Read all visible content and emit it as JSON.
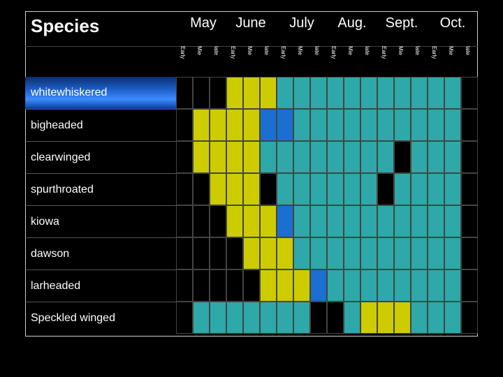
{
  "chart_data": {
    "type": "table",
    "title": "",
    "header_label": "Species",
    "months": [
      "May",
      "June",
      "July",
      "Aug.",
      "Sept.",
      "Oct."
    ],
    "subperiods": [
      "Early",
      "Mie",
      "late"
    ],
    "rows": [
      {
        "species": "whitewhiskered",
        "cells": [
          "k",
          "k",
          "k",
          "y",
          "y",
          "y",
          "c",
          "c",
          "c",
          "c",
          "c",
          "c",
          "c",
          "c",
          "c",
          "c",
          "c",
          "k"
        ]
      },
      {
        "species": "bigheaded",
        "cells": [
          "k",
          "y",
          "y",
          "y",
          "y",
          "b",
          "b",
          "c",
          "c",
          "c",
          "c",
          "c",
          "c",
          "c",
          "c",
          "c",
          "c",
          "k"
        ]
      },
      {
        "species": "clearwinged",
        "cells": [
          "k",
          "y",
          "y",
          "y",
          "y",
          "c",
          "c",
          "c",
          "c",
          "c",
          "c",
          "c",
          "c",
          "k",
          "c",
          "c",
          "c",
          "k"
        ]
      },
      {
        "species": "spurthroated",
        "cells": [
          "k",
          "k",
          "y",
          "y",
          "y",
          "k",
          "c",
          "c",
          "c",
          "c",
          "c",
          "c",
          "k",
          "c",
          "c",
          "c",
          "c",
          "k"
        ]
      },
      {
        "species": "kiowa",
        "cells": [
          "k",
          "k",
          "k",
          "y",
          "y",
          "y",
          "b",
          "c",
          "c",
          "c",
          "c",
          "c",
          "c",
          "c",
          "c",
          "c",
          "c",
          "k"
        ]
      },
      {
        "species": "dawson",
        "cells": [
          "k",
          "k",
          "k",
          "k",
          "y",
          "y",
          "y",
          "c",
          "c",
          "c",
          "c",
          "c",
          "c",
          "c",
          "c",
          "c",
          "c",
          "k"
        ]
      },
      {
        "species": "larheaded",
        "cells": [
          "k",
          "k",
          "k",
          "k",
          "k",
          "y",
          "y",
          "y",
          "b",
          "c",
          "c",
          "c",
          "c",
          "c",
          "c",
          "c",
          "c",
          "k"
        ]
      },
      {
        "species": "Speckled winged",
        "cells": [
          "k",
          "c",
          "c",
          "c",
          "c",
          "c",
          "c",
          "c",
          "k",
          "k",
          "c",
          "y",
          "y",
          "y",
          "c",
          "c",
          "c",
          "k"
        ]
      }
    ],
    "colors": {
      "k": "#000000",
      "y": "#cccc00",
      "c": "#2ea8a8",
      "b": "#1a6fd0"
    }
  }
}
